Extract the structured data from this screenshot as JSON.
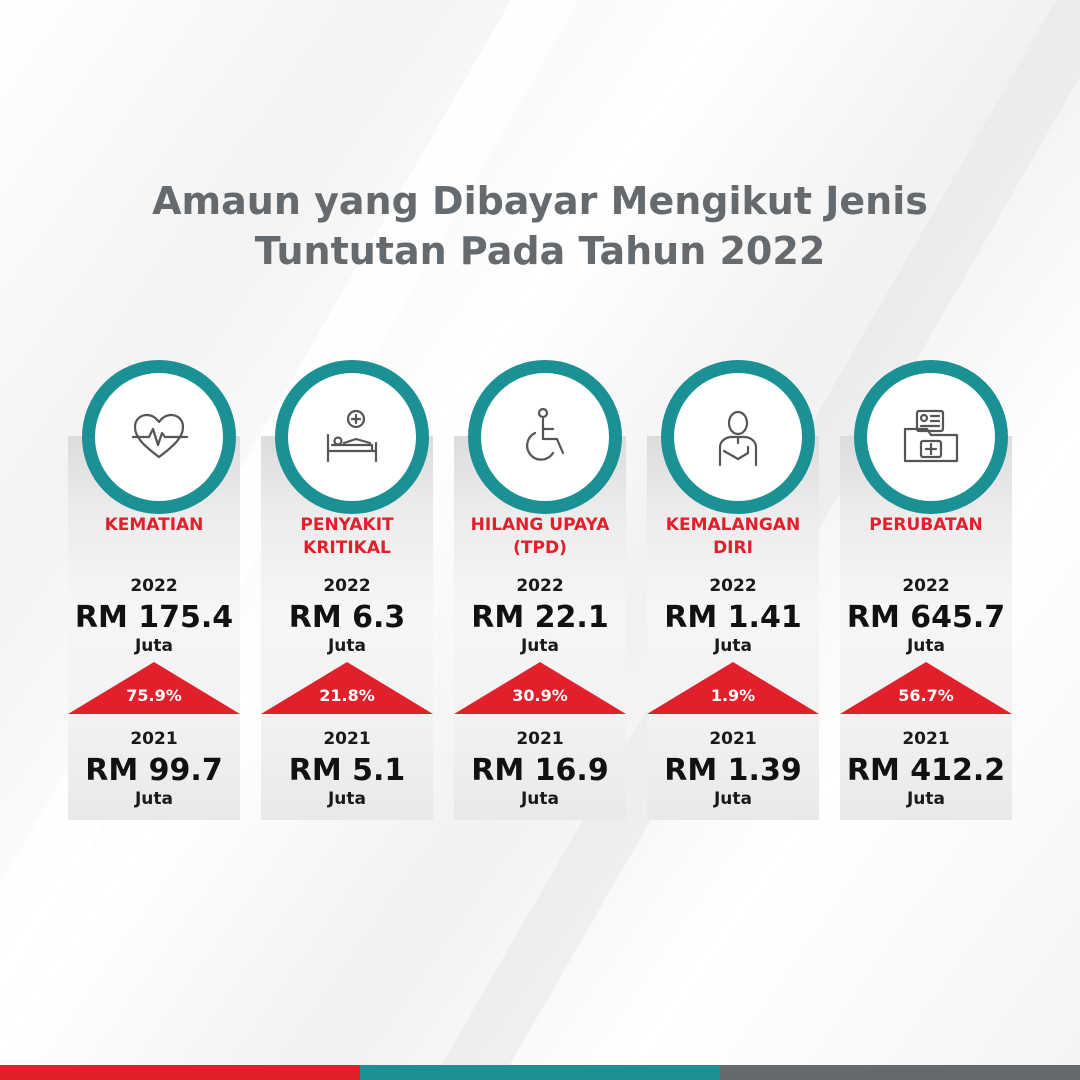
{
  "title": {
    "line1": "Amaun yang Dibayar Mengikut Jenis",
    "line2": "Tuntutan Pada Tahun 2022"
  },
  "colors": {
    "teal": "#1b9095",
    "red": "#e2202b",
    "grey": "#646a6d"
  },
  "categories": [
    {
      "icon": "heartbeat-icon",
      "label1": "KEMATIAN",
      "label2": "",
      "year_2022": "2022",
      "amount_2022": "RM 175.4",
      "unit_2022": "Juta",
      "change": "75.9%",
      "year_2021": "2021",
      "amount_2021": "RM 99.7",
      "unit_2021": "Juta"
    },
    {
      "icon": "hospital-bed-icon",
      "label1": "PENYAKIT",
      "label2": "KRITIKAL",
      "year_2022": "2022",
      "amount_2022": "RM 6.3",
      "unit_2022": "Juta",
      "change": "21.8%",
      "year_2021": "2021",
      "amount_2021": "RM 5.1",
      "unit_2021": "Juta"
    },
    {
      "icon": "wheelchair-icon",
      "label1": "HILANG UPAYA",
      "label2": "(TPD)",
      "year_2022": "2022",
      "amount_2022": "RM 22.1",
      "unit_2022": "Juta",
      "change": "30.9%",
      "year_2021": "2021",
      "amount_2021": "RM 16.9",
      "unit_2021": "Juta"
    },
    {
      "icon": "injured-person-icon",
      "label1": "KEMALANGAN",
      "label2": "DIRI",
      "year_2022": "2022",
      "amount_2022": "RM 1.41",
      "unit_2022": "Juta",
      "change": "1.9%",
      "year_2021": "2021",
      "amount_2021": "RM 1.39",
      "unit_2021": "Juta"
    },
    {
      "icon": "medical-folder-icon",
      "label1": "PERUBATAN",
      "label2": "",
      "year_2022": "2022",
      "amount_2022": "RM 645.7",
      "unit_2022": "Juta",
      "change": "56.7%",
      "year_2021": "2021",
      "amount_2021": "RM 412.2",
      "unit_2021": "Juta"
    }
  ]
}
